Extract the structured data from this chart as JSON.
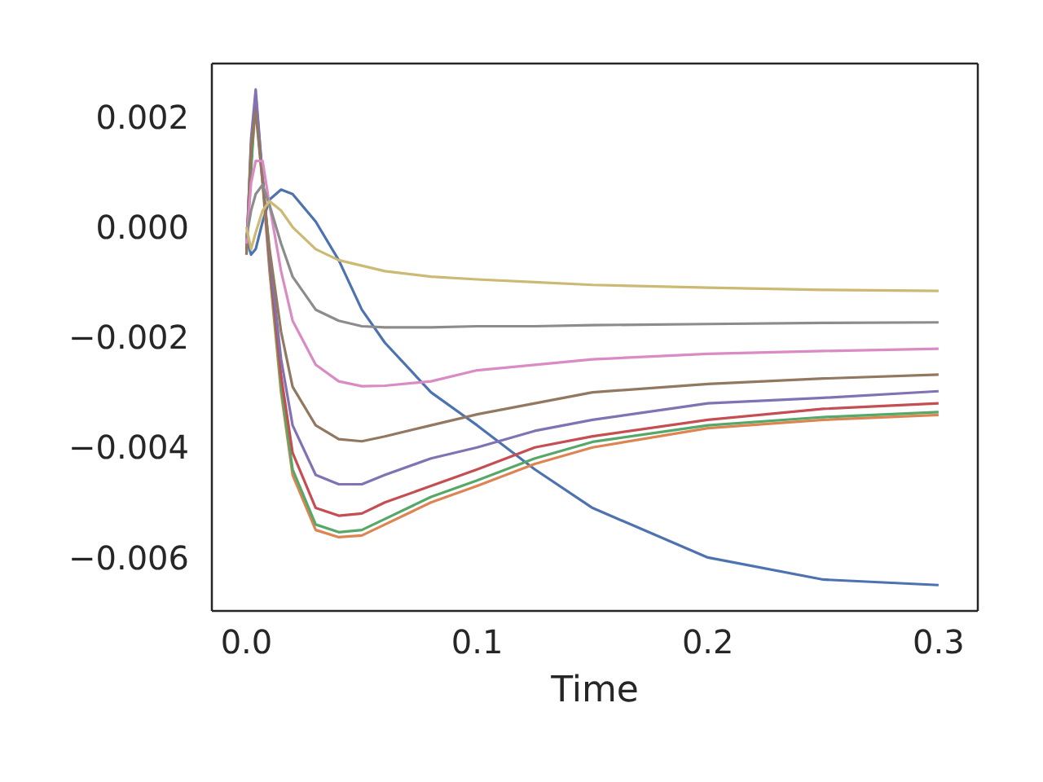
{
  "chart_data": {
    "type": "line",
    "xlabel": "Time",
    "x": [
      0,
      0.002,
      0.004,
      0.007,
      0.01,
      0.015,
      0.02,
      0.03,
      0.04,
      0.05,
      0.06,
      0.08,
      0.1,
      0.125,
      0.15,
      0.2,
      0.25,
      0.3
    ],
    "xlim": [
      -0.015,
      0.317
    ],
    "xticks": [
      {
        "value": 0,
        "label": "0.0"
      },
      0.1,
      0.2,
      0.3
    ],
    "ylim": [
      -0.00697,
      0.00297
    ],
    "yticks": [
      {
        "value": -0.006,
        "label": "−0.006"
      },
      {
        "value": -0.004,
        "label": "−0.004"
      },
      {
        "value": -0.002,
        "label": "−0.002"
      },
      {
        "value": 0,
        "label": "0.000"
      },
      {
        "value": 0.002,
        "label": "0.002"
      }
    ],
    "grid": false,
    "legend": false,
    "marker": "none",
    "line_style": "solid",
    "series": [
      {
        "color": "#4c72b0",
        "values": [
          -0.0002,
          -0.0005,
          -0.0004,
          0.0001,
          0.0005,
          0.00068,
          0.0006,
          0.0001,
          -0.0006,
          -0.0015,
          -0.0021,
          -0.003,
          -0.0036,
          -0.0044,
          -0.0051,
          -0.006,
          -0.0064,
          -0.0065
        ]
      },
      {
        "color": "#dd8452",
        "values": [
          -0.0004,
          0.0012,
          0.0022,
          0.0008,
          -0.0008,
          -0.003,
          -0.0045,
          -0.0055,
          -0.00563,
          -0.0056,
          -0.0054,
          -0.005,
          -0.0047,
          -0.0043,
          -0.004,
          -0.00365,
          -0.0035,
          -0.00341
        ]
      },
      {
        "color": "#55a868",
        "values": [
          -0.0003,
          0.001,
          0.0024,
          0.0009,
          -0.0007,
          -0.0029,
          -0.0044,
          -0.0054,
          -0.00554,
          -0.0055,
          -0.0053,
          -0.0049,
          -0.0046,
          -0.0042,
          -0.0039,
          -0.0036,
          -0.00345,
          -0.00336
        ]
      },
      {
        "color": "#c44e52",
        "values": [
          -0.0004,
          0.0014,
          0.0022,
          0.0009,
          -0.0006,
          -0.0027,
          -0.0041,
          -0.0051,
          -0.00524,
          -0.0052,
          -0.005,
          -0.0047,
          -0.0044,
          -0.004,
          -0.0038,
          -0.0035,
          -0.0033,
          -0.0032
        ]
      },
      {
        "color": "#8172b3",
        "values": [
          -0.0005,
          0.0016,
          0.0025,
          0.0009,
          -0.0005,
          -0.0024,
          -0.0036,
          -0.0045,
          -0.00467,
          -0.00467,
          -0.0045,
          -0.0042,
          -0.004,
          -0.0037,
          -0.0035,
          -0.0032,
          -0.0031,
          -0.00298
        ]
      },
      {
        "color": "#937860",
        "values": [
          -0.0005,
          0.0015,
          0.0021,
          0.0008,
          -0.0004,
          -0.0019,
          -0.0029,
          -0.0036,
          -0.00385,
          -0.00389,
          -0.0038,
          -0.0036,
          -0.0034,
          -0.0032,
          -0.003,
          -0.00285,
          -0.00275,
          -0.00268
        ]
      },
      {
        "color": "#da8bc3",
        "values": [
          -0.0003,
          0.0008,
          0.0012,
          0.0012,
          0.0004,
          -0.0008,
          -0.0017,
          -0.0025,
          -0.0028,
          -0.00289,
          -0.00288,
          -0.0028,
          -0.0026,
          -0.0025,
          -0.0024,
          -0.0023,
          -0.00225,
          -0.00221
        ]
      },
      {
        "color": "#8c8c8c",
        "values": [
          -0.0002,
          0.0003,
          0.0006,
          0.00077,
          0.0004,
          -0.0003,
          -0.0009,
          -0.0015,
          -0.0017,
          -0.0018,
          -0.00182,
          -0.00182,
          -0.0018,
          -0.0018,
          -0.00178,
          -0.00176,
          -0.00174,
          -0.00173
        ]
      },
      {
        "color": "#ccb974",
        "values": [
          0,
          -0.0004,
          -0.0001,
          0.0003,
          0.00047,
          0.0003,
          0,
          -0.0004,
          -0.0006,
          -0.0007,
          -0.0008,
          -0.0009,
          -0.00095,
          -0.001,
          -0.00105,
          -0.0011,
          -0.00114,
          -0.00116
        ]
      }
    ]
  }
}
